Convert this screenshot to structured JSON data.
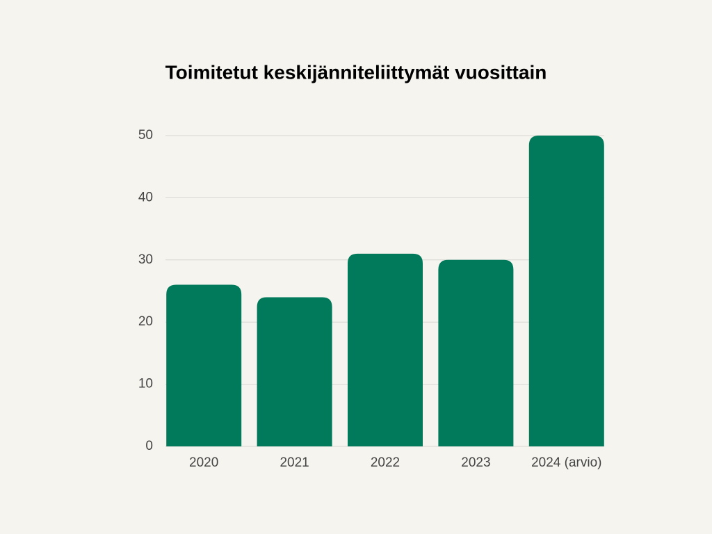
{
  "chart_data": {
    "type": "bar",
    "title": "Toimitetut keskijänniteliittymät vuosittain",
    "categories": [
      "2020",
      "2021",
      "2022",
      "2023",
      "2024 (arvio)"
    ],
    "values": [
      26,
      24,
      31,
      30,
      50
    ],
    "color": "#007a5a",
    "ylim": [
      0,
      50
    ],
    "yticks": [
      0,
      10,
      20,
      30,
      40,
      50
    ],
    "grid": true
  }
}
